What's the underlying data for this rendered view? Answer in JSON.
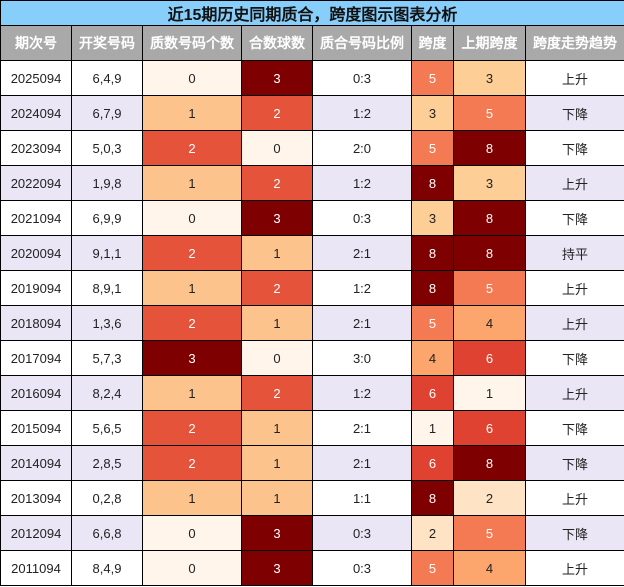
{
  "title": "近15期历史同期质合，跨度图示图表分析",
  "headers": [
    "期次号",
    "开奖号码",
    "质数号码个数",
    "合数球数",
    "质合号码比例",
    "跨度",
    "上期跨度",
    "跨度走势趋势"
  ],
  "colors": {
    "title_bg": "#87cefa",
    "header_bg": "#a9a9a9",
    "row_alt_bg": "#ebe6f5",
    "count_scale": {
      "0": "#fff5eb",
      "1": "#fdc38d",
      "2": "#e5533b",
      "3": "#7f0000"
    },
    "span_scale": {
      "1": "#fff5eb",
      "2": "#fee3c4",
      "3": "#fdce95",
      "4": "#fca66d",
      "5": "#f47a53",
      "6": "#df4230",
      "8": "#7f0000"
    }
  },
  "rows": [
    {
      "period": "2025094",
      "numbers": "6,4,9",
      "prime_count": "0",
      "composite_count": "3",
      "ratio": "0:3",
      "span": "5",
      "prev_span": "3",
      "trend": "上升"
    },
    {
      "period": "2024094",
      "numbers": "6,7,9",
      "prime_count": "1",
      "composite_count": "2",
      "ratio": "1:2",
      "span": "3",
      "prev_span": "5",
      "trend": "下降"
    },
    {
      "period": "2023094",
      "numbers": "5,0,3",
      "prime_count": "2",
      "composite_count": "0",
      "ratio": "2:0",
      "span": "5",
      "prev_span": "8",
      "trend": "下降"
    },
    {
      "period": "2022094",
      "numbers": "1,9,8",
      "prime_count": "1",
      "composite_count": "2",
      "ratio": "1:2",
      "span": "8",
      "prev_span": "3",
      "trend": "上升"
    },
    {
      "period": "2021094",
      "numbers": "6,9,9",
      "prime_count": "0",
      "composite_count": "3",
      "ratio": "0:3",
      "span": "3",
      "prev_span": "8",
      "trend": "下降"
    },
    {
      "period": "2020094",
      "numbers": "9,1,1",
      "prime_count": "2",
      "composite_count": "1",
      "ratio": "2:1",
      "span": "8",
      "prev_span": "8",
      "trend": "持平"
    },
    {
      "period": "2019094",
      "numbers": "8,9,1",
      "prime_count": "1",
      "composite_count": "2",
      "ratio": "1:2",
      "span": "8",
      "prev_span": "5",
      "trend": "上升"
    },
    {
      "period": "2018094",
      "numbers": "1,3,6",
      "prime_count": "2",
      "composite_count": "1",
      "ratio": "2:1",
      "span": "5",
      "prev_span": "4",
      "trend": "上升"
    },
    {
      "period": "2017094",
      "numbers": "5,7,3",
      "prime_count": "3",
      "composite_count": "0",
      "ratio": "3:0",
      "span": "4",
      "prev_span": "6",
      "trend": "下降"
    },
    {
      "period": "2016094",
      "numbers": "8,2,4",
      "prime_count": "1",
      "composite_count": "2",
      "ratio": "1:2",
      "span": "6",
      "prev_span": "1",
      "trend": "上升"
    },
    {
      "period": "2015094",
      "numbers": "5,6,5",
      "prime_count": "2",
      "composite_count": "1",
      "ratio": "2:1",
      "span": "1",
      "prev_span": "6",
      "trend": "下降"
    },
    {
      "period": "2014094",
      "numbers": "2,8,5",
      "prime_count": "2",
      "composite_count": "1",
      "ratio": "2:1",
      "span": "6",
      "prev_span": "8",
      "trend": "下降"
    },
    {
      "period": "2013094",
      "numbers": "0,2,8",
      "prime_count": "1",
      "composite_count": "1",
      "ratio": "1:1",
      "span": "8",
      "prev_span": "2",
      "trend": "上升"
    },
    {
      "period": "2012094",
      "numbers": "6,6,8",
      "prime_count": "0",
      "composite_count": "3",
      "ratio": "0:3",
      "span": "2",
      "prev_span": "5",
      "trend": "下降"
    },
    {
      "period": "2011094",
      "numbers": "8,4,9",
      "prime_count": "0",
      "composite_count": "3",
      "ratio": "0:3",
      "span": "5",
      "prev_span": "4",
      "trend": "上升"
    }
  ]
}
